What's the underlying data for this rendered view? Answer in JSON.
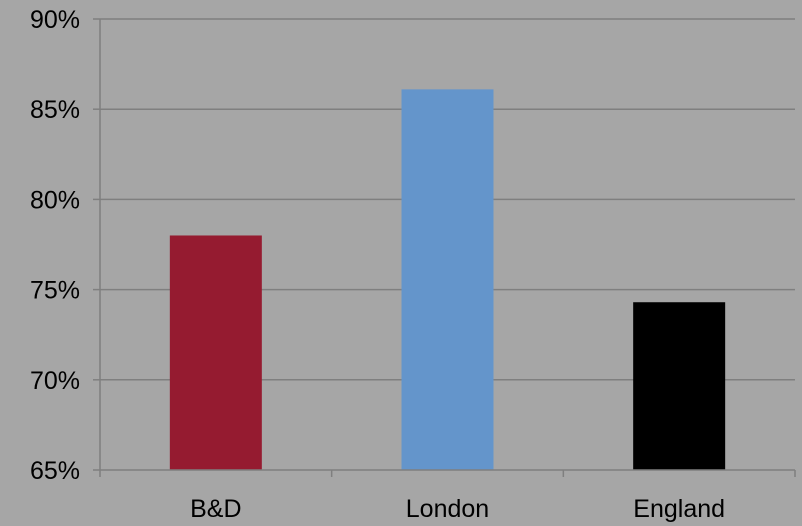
{
  "chart_data": {
    "type": "bar",
    "categories": [
      "B&D",
      "London",
      "England"
    ],
    "values": [
      78.0,
      86.1,
      74.3
    ],
    "colors": [
      "#951b30",
      "#6495cb",
      "#000000"
    ],
    "ylim": [
      65,
      90
    ],
    "yticks": [
      65,
      70,
      75,
      80,
      85,
      90
    ],
    "ytick_labels": [
      "65%",
      "70%",
      "75%",
      "80%",
      "85%",
      "90%"
    ],
    "grid": true,
    "title": "",
    "xlabel": "",
    "ylabel": ""
  }
}
